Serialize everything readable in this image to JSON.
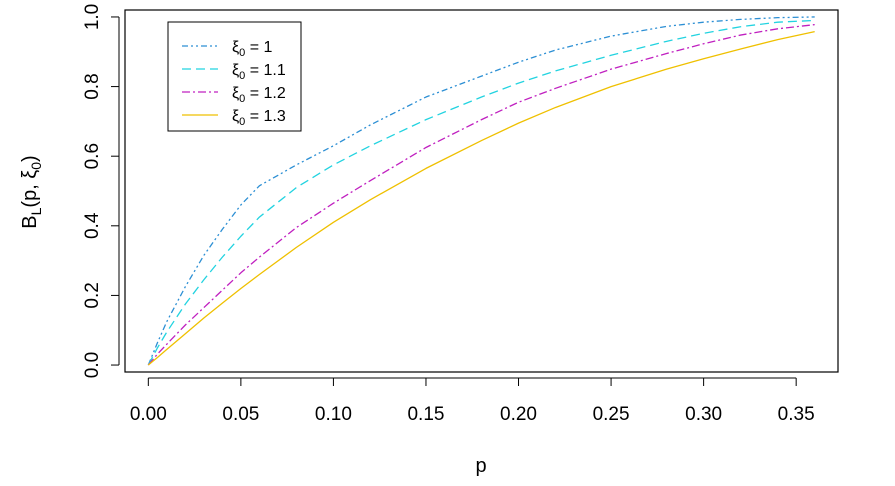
{
  "chart_data": {
    "type": "line",
    "title": "",
    "xlabel": "p",
    "ylabel": {
      "main": "B",
      "sub": "L",
      "rest": "(p, ξ",
      "sub2": "0",
      "end": ")"
    },
    "xlim": [
      -0.0126,
      0.3726
    ],
    "ylim": [
      -0.02,
      1.02
    ],
    "x_ticks": [
      0.0,
      0.05,
      0.1,
      0.15,
      0.2,
      0.25,
      0.3,
      0.35
    ],
    "x_tick_labels": [
      "0.00",
      "0.05",
      "0.10",
      "0.15",
      "0.20",
      "0.25",
      "0.30",
      "0.35"
    ],
    "y_ticks": [
      0.0,
      0.2,
      0.4,
      0.6,
      0.8,
      1.0
    ],
    "y_tick_labels": [
      "0.0",
      "0.2",
      "0.4",
      "0.6",
      "0.8",
      "1.0"
    ],
    "grid": false,
    "legend_position": "top-left",
    "series": [
      {
        "name": "ξ0 = 1",
        "legend": {
          "sym": "ξ",
          "sub": "0",
          "val": " = 1"
        },
        "color": "#2C8FD4",
        "dash": "6 3 2 3 2 3",
        "x": [
          0,
          0.005,
          0.01,
          0.02,
          0.03,
          0.04,
          0.05,
          0.06,
          0.08,
          0.1,
          0.12,
          0.15,
          0.18,
          0.2,
          0.22,
          0.25,
          0.28,
          0.3,
          0.32,
          0.34,
          0.36
        ],
        "y": [
          0.0,
          0.065,
          0.125,
          0.225,
          0.315,
          0.39,
          0.46,
          0.515,
          0.575,
          0.63,
          0.69,
          0.77,
          0.83,
          0.87,
          0.905,
          0.945,
          0.973,
          0.985,
          0.993,
          0.998,
          1.0
        ]
      },
      {
        "name": "ξ0 = 1.1",
        "legend": {
          "sym": "ξ",
          "sub": "0",
          "val": " = 1.1"
        },
        "color": "#22D3E0",
        "dash": "9 5",
        "x": [
          0,
          0.005,
          0.01,
          0.02,
          0.03,
          0.04,
          0.05,
          0.06,
          0.08,
          0.1,
          0.12,
          0.15,
          0.18,
          0.2,
          0.22,
          0.25,
          0.28,
          0.3,
          0.32,
          0.34,
          0.36
        ],
        "y": [
          0.0,
          0.05,
          0.095,
          0.175,
          0.245,
          0.31,
          0.37,
          0.425,
          0.51,
          0.575,
          0.63,
          0.705,
          0.77,
          0.81,
          0.845,
          0.89,
          0.93,
          0.953,
          0.972,
          0.985,
          0.99
        ]
      },
      {
        "name": "ξ0 = 1.2",
        "legend": {
          "sym": "ξ",
          "sub": "0",
          "val": " = 1.2"
        },
        "color": "#C020C0",
        "dash": "8 3 2 3",
        "x": [
          0,
          0.005,
          0.01,
          0.02,
          0.03,
          0.04,
          0.05,
          0.06,
          0.08,
          0.1,
          0.12,
          0.15,
          0.18,
          0.2,
          0.22,
          0.25,
          0.28,
          0.3,
          0.32,
          0.34,
          0.36
        ],
        "y": [
          0.0,
          0.032,
          0.06,
          0.115,
          0.165,
          0.215,
          0.265,
          0.31,
          0.395,
          0.465,
          0.53,
          0.625,
          0.705,
          0.755,
          0.795,
          0.85,
          0.895,
          0.923,
          0.948,
          0.966,
          0.978
        ]
      },
      {
        "name": "ξ0 = 1.3",
        "legend": {
          "sym": "ξ",
          "sub": "0",
          "val": " = 1.3"
        },
        "color": "#EFC000",
        "dash": "",
        "x": [
          0,
          0.005,
          0.01,
          0.02,
          0.03,
          0.04,
          0.05,
          0.06,
          0.08,
          0.1,
          0.12,
          0.15,
          0.18,
          0.2,
          0.22,
          0.25,
          0.28,
          0.3,
          0.32,
          0.34,
          0.36
        ],
        "y": [
          0.0,
          0.022,
          0.045,
          0.09,
          0.135,
          0.178,
          0.22,
          0.26,
          0.338,
          0.41,
          0.475,
          0.565,
          0.645,
          0.695,
          0.74,
          0.8,
          0.85,
          0.88,
          0.908,
          0.935,
          0.958
        ]
      }
    ]
  }
}
